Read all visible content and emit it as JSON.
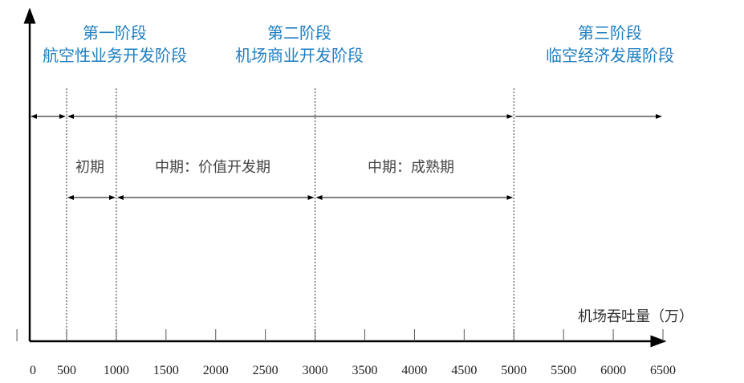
{
  "axis": {
    "label": "机场吞吐量（万）",
    "ticks": [
      0,
      500,
      1000,
      1500,
      2000,
      2500,
      3000,
      3500,
      4000,
      4500,
      5000,
      5500,
      6000,
      6500
    ]
  },
  "stages": [
    {
      "title": "第一阶段",
      "subtitle": "航空性业务开发阶段",
      "start": 0,
      "end": 500
    },
    {
      "title": "第二阶段",
      "subtitle": "机场商业开发阶段",
      "start": 500,
      "end": 5000
    },
    {
      "title": "第三阶段",
      "subtitle": "临空经济发展阶段",
      "start": 5000,
      "end": 6500
    }
  ],
  "periods": [
    {
      "label": "初期",
      "start": 500,
      "end": 1000
    },
    {
      "label": "中期：价值开发期",
      "start": 1000,
      "end": 3000
    },
    {
      "label": "中期：成熟期",
      "start": 3000,
      "end": 5000
    }
  ]
}
